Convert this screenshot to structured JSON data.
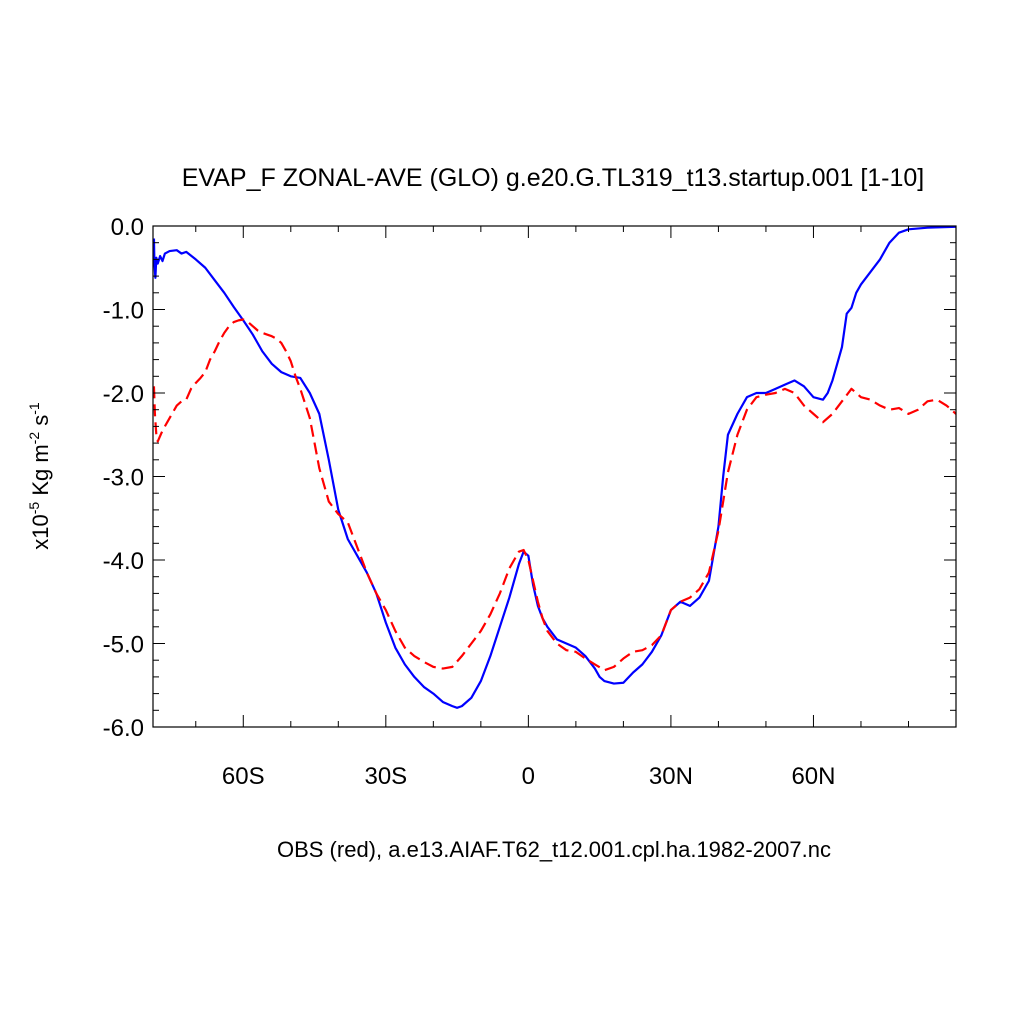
{
  "chart_data": {
    "type": "line",
    "title": "EVAP_F ZONAL-AVE (GLO) g.e20.G.TL319_t13.startup.001 [1-10]",
    "ylabel": {
      "prefix": "x10",
      "exponent": "-5",
      "kg_label": " Kg m",
      "m_exponent": "-2",
      "s_label": " s",
      "s_exponent": "-1"
    },
    "xlabel": "OBS (red), a.e13.AIAF.T62_t12.001.cpl.ha.1982-2007.nc",
    "xlim": [
      -79,
      90
    ],
    "ylim": [
      -6.0,
      0.0
    ],
    "x_major_ticks": [
      -60,
      -30,
      0,
      30,
      60
    ],
    "x_tick_labels": [
      "60S",
      "30S",
      "0",
      "30N",
      "60N"
    ],
    "x_minor_step": 10,
    "y_major_ticks": [
      0,
      -1,
      -2,
      -3,
      -4,
      -5,
      -6
    ],
    "y_tick_labels": [
      "0.0",
      "-1.0",
      "-2.0",
      "-3.0",
      "-4.0",
      "-5.0",
      "-6.0"
    ],
    "y_minor_step": 0.2,
    "grid": false,
    "series": [
      {
        "color": "#0000ff",
        "style": "solid",
        "points": [
          [
            -78.8,
            -0.15
          ],
          [
            -78.7,
            -0.45
          ],
          [
            -78.5,
            -0.62
          ],
          [
            -78.3,
            -0.38
          ],
          [
            -78,
            -0.45
          ],
          [
            -77.5,
            -0.36
          ],
          [
            -77,
            -0.42
          ],
          [
            -76.5,
            -0.33
          ],
          [
            -75.5,
            -0.3
          ],
          [
            -74,
            -0.29
          ],
          [
            -73,
            -0.33
          ],
          [
            -72,
            -0.31
          ],
          [
            -70,
            -0.4
          ],
          [
            -68,
            -0.5
          ],
          [
            -66,
            -0.65
          ],
          [
            -64,
            -0.8
          ],
          [
            -62,
            -0.97
          ],
          [
            -60,
            -1.13
          ],
          [
            -58,
            -1.3
          ],
          [
            -56,
            -1.5
          ],
          [
            -54,
            -1.65
          ],
          [
            -52,
            -1.75
          ],
          [
            -50,
            -1.8
          ],
          [
            -48,
            -1.82
          ],
          [
            -46,
            -2.0
          ],
          [
            -44,
            -2.25
          ],
          [
            -42,
            -2.8
          ],
          [
            -40,
            -3.4
          ],
          [
            -38,
            -3.75
          ],
          [
            -36,
            -3.95
          ],
          [
            -34,
            -4.15
          ],
          [
            -32,
            -4.4
          ],
          [
            -30,
            -4.75
          ],
          [
            -28,
            -5.05
          ],
          [
            -26,
            -5.25
          ],
          [
            -24,
            -5.4
          ],
          [
            -22,
            -5.52
          ],
          [
            -20,
            -5.6
          ],
          [
            -18,
            -5.7
          ],
          [
            -16,
            -5.75
          ],
          [
            -15,
            -5.77
          ],
          [
            -14,
            -5.75
          ],
          [
            -12,
            -5.65
          ],
          [
            -10,
            -5.45
          ],
          [
            -8,
            -5.15
          ],
          [
            -6,
            -4.8
          ],
          [
            -4,
            -4.45
          ],
          [
            -2,
            -4.05
          ],
          [
            -1,
            -3.9
          ],
          [
            0,
            -3.95
          ],
          [
            1,
            -4.3
          ],
          [
            2,
            -4.55
          ],
          [
            3,
            -4.7
          ],
          [
            4,
            -4.8
          ],
          [
            6,
            -4.95
          ],
          [
            8,
            -5.0
          ],
          [
            10,
            -5.05
          ],
          [
            12,
            -5.15
          ],
          [
            14,
            -5.3
          ],
          [
            15,
            -5.4
          ],
          [
            16,
            -5.45
          ],
          [
            18,
            -5.48
          ],
          [
            20,
            -5.47
          ],
          [
            22,
            -5.35
          ],
          [
            24,
            -5.25
          ],
          [
            26,
            -5.1
          ],
          [
            28,
            -4.9
          ],
          [
            30,
            -4.6
          ],
          [
            32,
            -4.5
          ],
          [
            34,
            -4.55
          ],
          [
            36,
            -4.45
          ],
          [
            38,
            -4.25
          ],
          [
            40,
            -3.6
          ],
          [
            41,
            -3.0
          ],
          [
            42,
            -2.5
          ],
          [
            44,
            -2.25
          ],
          [
            46,
            -2.05
          ],
          [
            48,
            -2.0
          ],
          [
            50,
            -2.0
          ],
          [
            52,
            -1.95
          ],
          [
            54,
            -1.9
          ],
          [
            56,
            -1.85
          ],
          [
            58,
            -1.92
          ],
          [
            60,
            -2.05
          ],
          [
            62,
            -2.08
          ],
          [
            63,
            -2.0
          ],
          [
            64,
            -1.85
          ],
          [
            65,
            -1.65
          ],
          [
            66,
            -1.45
          ],
          [
            67,
            -1.05
          ],
          [
            68,
            -0.98
          ],
          [
            69,
            -0.8
          ],
          [
            70,
            -0.7
          ],
          [
            72,
            -0.55
          ],
          [
            74,
            -0.4
          ],
          [
            76,
            -0.2
          ],
          [
            78,
            -0.08
          ],
          [
            80,
            -0.04
          ],
          [
            84,
            -0.02
          ],
          [
            90,
            -0.01
          ]
        ]
      },
      {
        "color": "#ff0000",
        "style": "dashed",
        "points": [
          [
            -78.8,
            -1.92
          ],
          [
            -78.6,
            -2.25
          ],
          [
            -78.3,
            -2.5
          ],
          [
            -78,
            -2.58
          ],
          [
            -77,
            -2.45
          ],
          [
            -76,
            -2.35
          ],
          [
            -75,
            -2.25
          ],
          [
            -74,
            -2.15
          ],
          [
            -73,
            -2.1
          ],
          [
            -72,
            -2.08
          ],
          [
            -71,
            -1.95
          ],
          [
            -70,
            -1.88
          ],
          [
            -69,
            -1.82
          ],
          [
            -68,
            -1.75
          ],
          [
            -67,
            -1.6
          ],
          [
            -66,
            -1.5
          ],
          [
            -65,
            -1.38
          ],
          [
            -64,
            -1.28
          ],
          [
            -63,
            -1.2
          ],
          [
            -62,
            -1.15
          ],
          [
            -61,
            -1.13
          ],
          [
            -60,
            -1.12
          ],
          [
            -59,
            -1.15
          ],
          [
            -58,
            -1.2
          ],
          [
            -57,
            -1.25
          ],
          [
            -56,
            -1.28
          ],
          [
            -55,
            -1.3
          ],
          [
            -54,
            -1.32
          ],
          [
            -53,
            -1.35
          ],
          [
            -52,
            -1.4
          ],
          [
            -51,
            -1.5
          ],
          [
            -50,
            -1.62
          ],
          [
            -49,
            -1.8
          ],
          [
            -48,
            -1.95
          ],
          [
            -46,
            -2.3
          ],
          [
            -44,
            -2.9
          ],
          [
            -42,
            -3.3
          ],
          [
            -40,
            -3.45
          ],
          [
            -38,
            -3.55
          ],
          [
            -36,
            -3.85
          ],
          [
            -34,
            -4.15
          ],
          [
            -32,
            -4.4
          ],
          [
            -30,
            -4.6
          ],
          [
            -28,
            -4.85
          ],
          [
            -26,
            -5.05
          ],
          [
            -24,
            -5.15
          ],
          [
            -22,
            -5.22
          ],
          [
            -20,
            -5.28
          ],
          [
            -18,
            -5.3
          ],
          [
            -16,
            -5.28
          ],
          [
            -14,
            -5.15
          ],
          [
            -12,
            -5.0
          ],
          [
            -10,
            -4.85
          ],
          [
            -8,
            -4.65
          ],
          [
            -6,
            -4.4
          ],
          [
            -4,
            -4.1
          ],
          [
            -2,
            -3.9
          ],
          [
            -1,
            -3.88
          ],
          [
            0,
            -4.0
          ],
          [
            1,
            -4.25
          ],
          [
            2,
            -4.5
          ],
          [
            3,
            -4.7
          ],
          [
            4,
            -4.85
          ],
          [
            6,
            -5.0
          ],
          [
            8,
            -5.08
          ],
          [
            10,
            -5.1
          ],
          [
            12,
            -5.18
          ],
          [
            14,
            -5.25
          ],
          [
            16,
            -5.32
          ],
          [
            18,
            -5.28
          ],
          [
            20,
            -5.18
          ],
          [
            22,
            -5.1
          ],
          [
            24,
            -5.08
          ],
          [
            26,
            -5.02
          ],
          [
            28,
            -4.9
          ],
          [
            30,
            -4.6
          ],
          [
            32,
            -4.5
          ],
          [
            34,
            -4.45
          ],
          [
            36,
            -4.35
          ],
          [
            38,
            -4.15
          ],
          [
            40,
            -3.65
          ],
          [
            42,
            -2.95
          ],
          [
            44,
            -2.5
          ],
          [
            46,
            -2.2
          ],
          [
            48,
            -2.05
          ],
          [
            50,
            -2.02
          ],
          [
            52,
            -2.0
          ],
          [
            54,
            -1.95
          ],
          [
            56,
            -2.0
          ],
          [
            58,
            -2.15
          ],
          [
            60,
            -2.25
          ],
          [
            62,
            -2.35
          ],
          [
            64,
            -2.25
          ],
          [
            66,
            -2.1
          ],
          [
            68,
            -1.95
          ],
          [
            70,
            -2.05
          ],
          [
            72,
            -2.08
          ],
          [
            74,
            -2.15
          ],
          [
            76,
            -2.2
          ],
          [
            78,
            -2.18
          ],
          [
            80,
            -2.25
          ],
          [
            82,
            -2.2
          ],
          [
            84,
            -2.1
          ],
          [
            86,
            -2.08
          ],
          [
            88,
            -2.15
          ],
          [
            90,
            -2.25
          ]
        ]
      }
    ]
  }
}
